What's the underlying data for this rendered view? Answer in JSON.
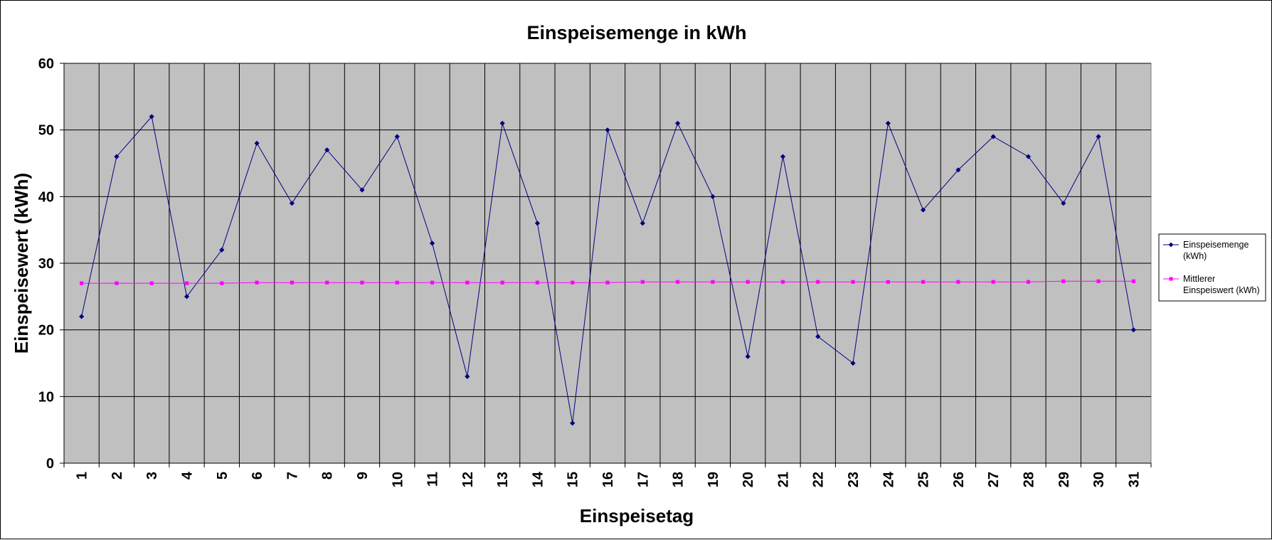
{
  "chart_data": {
    "type": "line",
    "title": "Einspeisemenge in kWh",
    "xlabel": "Einspeisetag",
    "ylabel": "Einspeisewert  (kWh)",
    "categories": [
      "1",
      "2",
      "3",
      "4",
      "5",
      "6",
      "7",
      "8",
      "9",
      "10",
      "11",
      "12",
      "13",
      "14",
      "15",
      "16",
      "17",
      "18",
      "19",
      "20",
      "21",
      "22",
      "23",
      "24",
      "25",
      "26",
      "27",
      "28",
      "29",
      "30",
      "31"
    ],
    "ylim": [
      0,
      60
    ],
    "yticks": [
      0,
      10,
      20,
      30,
      40,
      50,
      60
    ],
    "grid": true,
    "legend_position": "right",
    "series": [
      {
        "name_lines": [
          "Einspeisemenge",
          "(kWh)"
        ],
        "color": "#000080",
        "marker": "diamond",
        "values": [
          22,
          46,
          52,
          25,
          32,
          48,
          39,
          47,
          41,
          49,
          33,
          13,
          51,
          36,
          6,
          50,
          36,
          51,
          40,
          16,
          46,
          19,
          15,
          51,
          38,
          44,
          49,
          46,
          39,
          49,
          20
        ]
      },
      {
        "name_lines": [
          "Mittlerer",
          "Einspeiswert (kWh)"
        ],
        "color": "#FF00FF",
        "marker": "square",
        "values": [
          27.0,
          27.0,
          27.0,
          27.0,
          27.0,
          27.1,
          27.1,
          27.1,
          27.1,
          27.1,
          27.1,
          27.1,
          27.1,
          27.1,
          27.1,
          27.1,
          27.2,
          27.2,
          27.2,
          27.2,
          27.2,
          27.2,
          27.2,
          27.2,
          27.2,
          27.2,
          27.2,
          27.2,
          27.3,
          27.3,
          27.3
        ]
      }
    ]
  }
}
